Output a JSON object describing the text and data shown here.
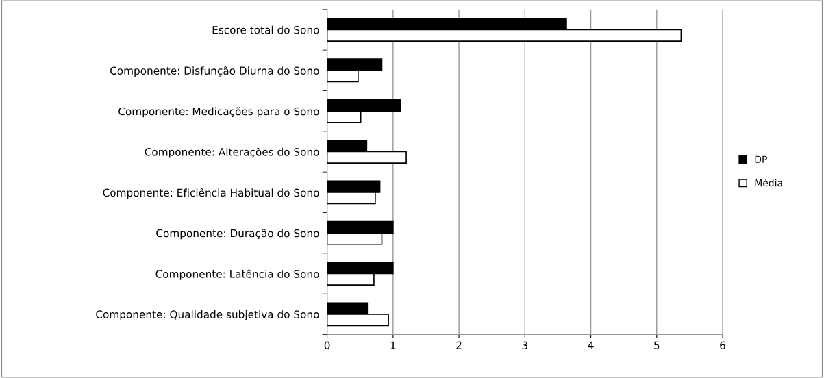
{
  "chart_data": {
    "type": "bar",
    "orientation": "horizontal",
    "categories": [
      "Escore total do Sono",
      "Componente: Disfunção Diurna do Sono",
      "Componente: Medicações para o Sono",
      "Componente: Alterações do Sono",
      "Componente: Eficiência Habitual do Sono",
      "Componente: Duração do Sono",
      "Componente: Latência do Sono",
      "Componente: Qualidade subjetiva do Sono"
    ],
    "series": [
      {
        "name": "DP",
        "color": "#000000",
        "values": [
          3.63,
          0.83,
          1.11,
          0.6,
          0.8,
          1.0,
          1.0,
          0.61
        ]
      },
      {
        "name": "Média",
        "color": "#ffffff",
        "values": [
          5.37,
          0.47,
          0.51,
          1.2,
          0.73,
          0.83,
          0.71,
          0.93
        ]
      }
    ],
    "xlim": [
      0,
      6
    ],
    "xticks": [
      0,
      1,
      2,
      3,
      4,
      5,
      6
    ],
    "grid": "x",
    "legend": "right"
  }
}
